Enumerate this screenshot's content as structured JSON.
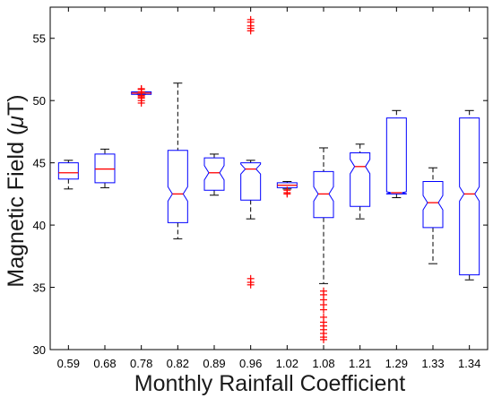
{
  "chart_data": {
    "type": "box",
    "xlabel": "Monthly Rainfall Coefficient",
    "ylabel_prefix": "Magnetic Field (",
    "ylabel_mu": "μ",
    "ylabel_suffix": "T)",
    "ylim": [
      30,
      57.5
    ],
    "yticks": [
      30,
      35,
      40,
      45,
      50,
      55
    ],
    "grid": false,
    "colors": {
      "box": "#0000ff",
      "median": "#ff0000",
      "whisker": "#000000",
      "outlier": "#ff0000",
      "axis": "#000000"
    },
    "categories": [
      "0.59",
      "0.68",
      "0.78",
      "0.82",
      "0.89",
      "0.96",
      "1.02",
      "1.08",
      "1.21",
      "1.29",
      "1.33",
      "1.34"
    ],
    "boxes": [
      {
        "q1": 43.7,
        "median": 44.2,
        "q3": 45.0,
        "lower_whisker": 42.9,
        "upper_whisker": 45.2,
        "notched": false,
        "outliers": []
      },
      {
        "q1": 43.4,
        "median": 44.5,
        "q3": 45.7,
        "lower_whisker": 43.0,
        "upper_whisker": 46.1,
        "notched": false,
        "outliers": []
      },
      {
        "q1": 50.5,
        "median": 50.6,
        "q3": 50.7,
        "lower_whisker": 50.5,
        "upper_whisker": 50.7,
        "notched": false,
        "outliers": [
          50.9,
          50.7,
          50.4,
          50.2,
          50.0,
          49.8,
          50.95,
          50.3
        ]
      },
      {
        "q1": 40.2,
        "median": 42.5,
        "q3": 46.0,
        "lower_whisker": 38.9,
        "upper_whisker": 51.4,
        "notched": true,
        "outliers": []
      },
      {
        "q1": 42.8,
        "median": 44.2,
        "q3": 45.4,
        "lower_whisker": 42.4,
        "upper_whisker": 45.7,
        "notched": true,
        "outliers": []
      },
      {
        "q1": 42.0,
        "median": 44.5,
        "q3": 45.0,
        "lower_whisker": 40.5,
        "upper_whisker": 45.2,
        "notched": true,
        "outliers": [
          56.5,
          56.3,
          56.0,
          55.8,
          55.6,
          35.7,
          35.4,
          35.2
        ]
      },
      {
        "q1": 43.0,
        "median": 43.2,
        "q3": 43.4,
        "lower_whisker": 42.9,
        "upper_whisker": 43.5,
        "notched": false,
        "outliers": [
          42.8,
          42.6,
          42.5
        ]
      },
      {
        "q1": 40.6,
        "median": 42.5,
        "q3": 44.3,
        "lower_whisker": 35.3,
        "upper_whisker": 46.2,
        "notched": true,
        "outliers": [
          34.7,
          34.4,
          34.0,
          33.6,
          33.2,
          32.2,
          31.9,
          31.6,
          31.3,
          31.0,
          30.8,
          32.6
        ]
      },
      {
        "q1": 41.5,
        "median": 44.7,
        "q3": 45.8,
        "lower_whisker": 40.5,
        "upper_whisker": 46.5,
        "notched": true,
        "outliers": []
      },
      {
        "q1": 42.5,
        "median": 42.6,
        "q3": 48.6,
        "lower_whisker": 42.2,
        "upper_whisker": 49.2,
        "notched": true,
        "outliers": []
      },
      {
        "q1": 39.8,
        "median": 41.8,
        "q3": 43.5,
        "lower_whisker": 36.9,
        "upper_whisker": 44.6,
        "notched": true,
        "outliers": []
      },
      {
        "q1": 36.0,
        "median": 42.5,
        "q3": 48.6,
        "lower_whisker": 35.6,
        "upper_whisker": 49.2,
        "notched": true,
        "outliers": []
      }
    ]
  }
}
